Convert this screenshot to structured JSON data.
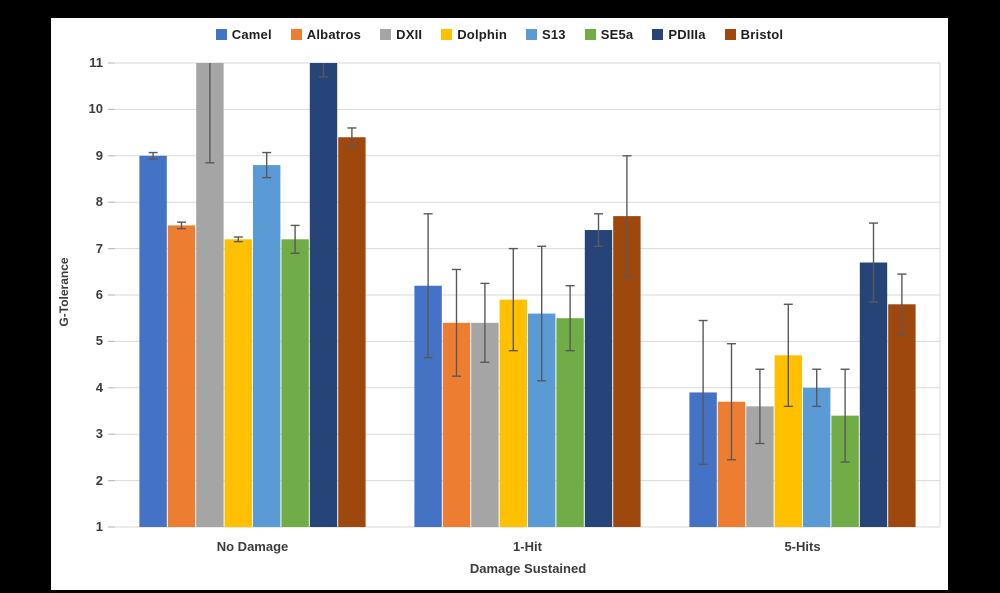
{
  "window": {
    "background_color": "#000000",
    "canvas_color": "#FFFFFF"
  },
  "chart_data": {
    "type": "bar",
    "title": "",
    "xlabel": "Damage Sustained",
    "ylabel": "G-Tolerance",
    "ylim": [
      1,
      11
    ],
    "yticks": [
      1,
      2,
      3,
      4,
      5,
      6,
      7,
      8,
      9,
      10,
      11
    ],
    "categories": [
      "No Damage",
      "1-Hit",
      "5-Hits"
    ],
    "legend_position": "top",
    "grid": true,
    "error_bars": true,
    "series": [
      {
        "name": "Camel",
        "color": "#4472C4",
        "values": [
          9.0,
          6.2,
          3.9
        ],
        "errors": [
          0.07,
          1.55,
          1.55
        ]
      },
      {
        "name": "Albatros",
        "color": "#ED7D31",
        "values": [
          7.5,
          5.4,
          3.7
        ],
        "errors": [
          0.07,
          1.15,
          1.25
        ]
      },
      {
        "name": "DXII",
        "color": "#A5A5A5",
        "values": [
          11.0,
          5.4,
          3.6
        ],
        "errors": [
          2.15,
          0.85,
          0.8
        ]
      },
      {
        "name": "Dolphin",
        "color": "#FFC000",
        "values": [
          7.2,
          5.9,
          4.7
        ],
        "errors": [
          0.05,
          1.1,
          1.1
        ]
      },
      {
        "name": "S13",
        "color": "#5B9BD5",
        "values": [
          8.8,
          5.6,
          4.0
        ],
        "errors": [
          0.27,
          1.45,
          0.4
        ]
      },
      {
        "name": "SE5a",
        "color": "#70AD47",
        "values": [
          7.2,
          5.5,
          3.4
        ],
        "errors": [
          0.3,
          0.7,
          1.0
        ]
      },
      {
        "name": "PDIIIa",
        "color": "#264478",
        "values": [
          11.0,
          7.4,
          6.7
        ],
        "errors": [
          0.3,
          0.35,
          0.85
        ]
      },
      {
        "name": "Bristol",
        "color": "#9E480E",
        "values": [
          9.4,
          7.7,
          5.8
        ],
        "errors": [
          0.2,
          1.3,
          0.65
        ]
      }
    ],
    "colors": {
      "gridline": "#D9D9D9",
      "tick_mark": "#BFBFBF",
      "error_bar": "#595959",
      "axis_text": "#3C3C3C",
      "legend_text": "#1F1F1F",
      "plot_right_border": "#D9D9D9"
    }
  }
}
